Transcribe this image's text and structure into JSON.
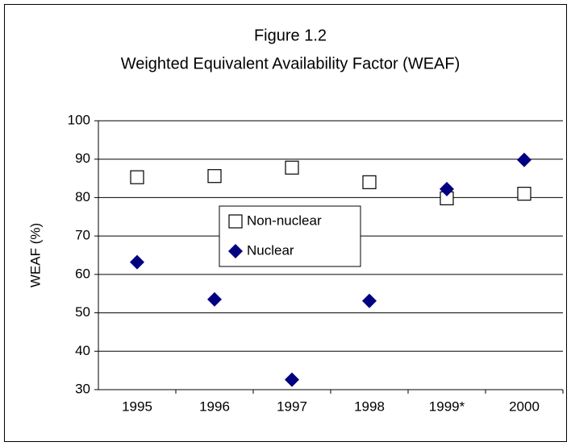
{
  "chart_data": {
    "type": "scatter",
    "title": "Figure 1.2",
    "subtitle": "Weighted Equivalent Availability Factor (WEAF)",
    "y_label": "WEAF (%)",
    "categories": [
      "1995",
      "1996",
      "1997",
      "1998",
      "1999*",
      "2000"
    ],
    "series": [
      {
        "name": "Non-nuclear",
        "color": "#000000",
        "marker": "square-open",
        "values": [
          85.3,
          85.6,
          87.8,
          84.0,
          79.8,
          81.0
        ]
      },
      {
        "name": "Nuclear",
        "color": "#000080",
        "marker": "diamond",
        "values": [
          63.2,
          53.5,
          32.6,
          53.1,
          82.2,
          89.8
        ]
      }
    ],
    "ylim": [
      30,
      100
    ],
    "yticks": [
      30,
      40,
      50,
      60,
      70,
      80,
      90,
      100
    ],
    "grid": true
  }
}
